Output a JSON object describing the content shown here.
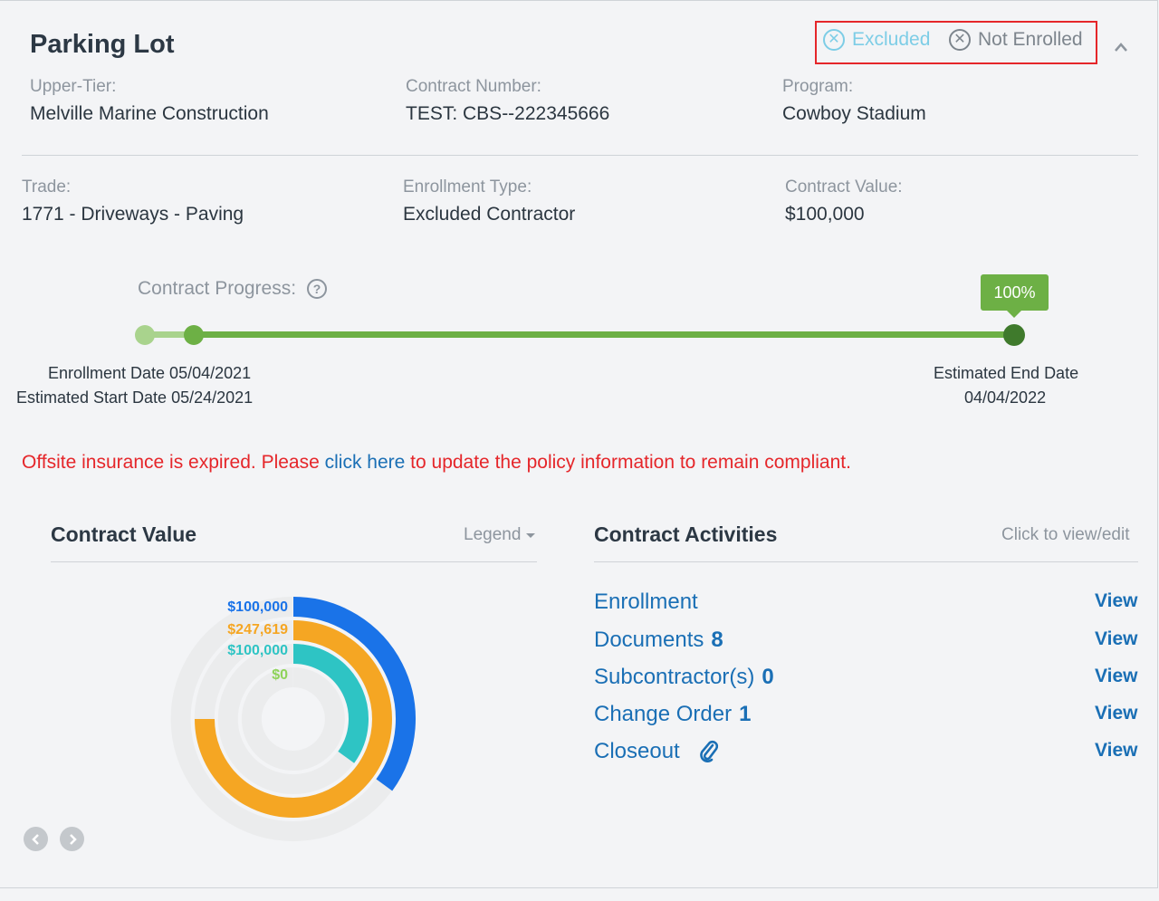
{
  "header": {
    "title": "Parking Lot",
    "badges": [
      {
        "label": "Excluded",
        "icon": "x-circle-icon",
        "color": "#7dcde6"
      },
      {
        "label": "Not Enrolled",
        "icon": "x-circle-icon",
        "color": "#7d858d"
      }
    ]
  },
  "details": {
    "upper_tier": {
      "label": "Upper-Tier:",
      "value": "Melville Marine Construction"
    },
    "contract_number": {
      "label": "Contract Number:",
      "value": "TEST: CBS--222345666"
    },
    "program": {
      "label": "Program:",
      "value": "Cowboy Stadium"
    },
    "trade": {
      "label": "Trade:",
      "value": "1771 - Driveways - Paving"
    },
    "enrollment_type": {
      "label": "Enrollment Type:",
      "value": "Excluded Contractor"
    },
    "contract_value": {
      "label": "Contract Value:",
      "value": "$100,000"
    }
  },
  "progress": {
    "label": "Contract Progress:",
    "percent_label": "100%",
    "percent": 100,
    "enrollment_date": "Enrollment Date 05/04/2021",
    "start_date": "Estimated Start Date 05/24/2021",
    "end_date_label": "Estimated End Date",
    "end_date": "04/04/2022"
  },
  "alert": {
    "before": "Offsite insurance is expired. Please ",
    "link": "click here",
    "after": " to update the policy information to remain compliant."
  },
  "contract_value_panel": {
    "title": "Contract Value",
    "legend_label": "Legend",
    "rings": [
      {
        "label": "$100,000",
        "color": "#1a73e8",
        "fraction": 0.35
      },
      {
        "label": "$247,619",
        "color": "#f5a623",
        "fraction": 0.75
      },
      {
        "label": "$100,000",
        "color": "#2ec4c4",
        "fraction": 0.35
      },
      {
        "label": "$0",
        "color": "#8fd35a",
        "fraction": 0
      }
    ]
  },
  "activities_panel": {
    "title": "Contract Activities",
    "hint": "Click to view/edit",
    "view_label": "View",
    "items": [
      {
        "label": "Enrollment",
        "count": ""
      },
      {
        "label": "Documents",
        "count": "8"
      },
      {
        "label": "Subcontractor(s)",
        "count": "0"
      },
      {
        "label": "Change Order",
        "count": "1"
      },
      {
        "label": "Closeout",
        "count": ""
      }
    ]
  }
}
